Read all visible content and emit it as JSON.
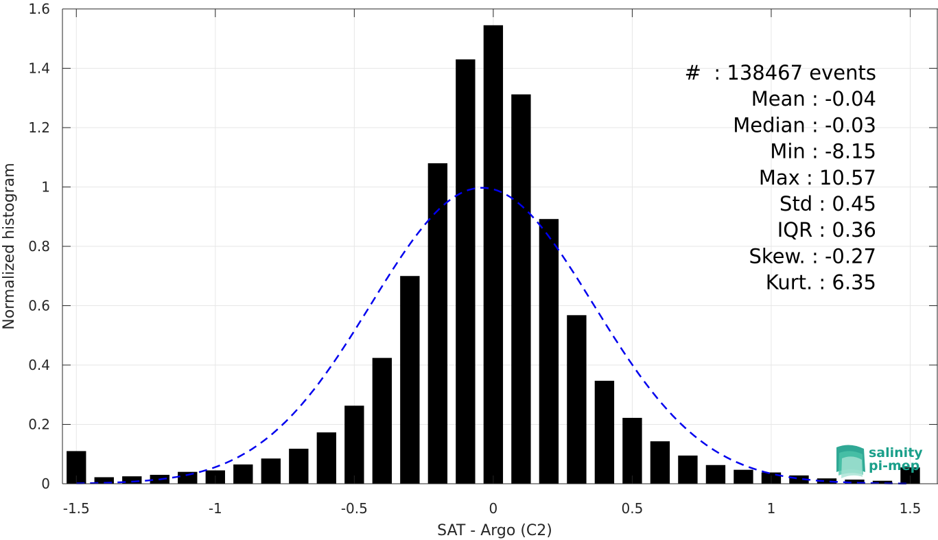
{
  "chart_data": {
    "type": "bar",
    "xlabel": "SAT - Argo (C2)",
    "ylabel": "Normalized histogram",
    "xlim": [
      -1.55,
      1.6
    ],
    "ylim": [
      0,
      1.6
    ],
    "xticks": [
      -1.5,
      -1,
      -0.5,
      0,
      0.5,
      1,
      1.5
    ],
    "xtick_labels": [
      "-1.5",
      "-1",
      "-0.5",
      "0",
      "0.5",
      "1",
      "1.5"
    ],
    "yticks": [
      0,
      0.2,
      0.4,
      0.6,
      0.8,
      1,
      1.2,
      1.4,
      1.6
    ],
    "ytick_labels": [
      "0",
      "0.2",
      "0.4",
      "0.6",
      "0.8",
      "1",
      "1.2",
      "1.4",
      "1.6"
    ],
    "grid": true,
    "bar_color": "#000000",
    "bin_width": 0.1,
    "x": [
      -1.5,
      -1.4,
      -1.3,
      -1.2,
      -1.1,
      -1.0,
      -0.9,
      -0.8,
      -0.7,
      -0.6,
      -0.5,
      -0.4,
      -0.3,
      -0.2,
      -0.1,
      0.0,
      0.1,
      0.2,
      0.3,
      0.4,
      0.5,
      0.6,
      0.7,
      0.8,
      0.9,
      1.0,
      1.1,
      1.2,
      1.3,
      1.4,
      1.5
    ],
    "values": [
      0.11,
      0.022,
      0.025,
      0.03,
      0.04,
      0.045,
      0.065,
      0.085,
      0.118,
      0.173,
      0.263,
      0.424,
      0.7,
      1.08,
      1.43,
      1.545,
      1.312,
      0.892,
      0.568,
      0.347,
      0.222,
      0.143,
      0.095,
      0.063,
      0.047,
      0.038,
      0.028,
      0.018,
      0.014,
      0.01,
      0.055
    ],
    "fit_curve": {
      "type": "gaussian",
      "mean": -0.04,
      "std": 0.4,
      "color": "#0000ee",
      "style": "dashed"
    },
    "annotations": [
      "#  : 138467 events",
      "Mean : -0.04",
      "Median : -0.03",
      "Min : -8.15",
      "Max : 10.57",
      "Std : 0.45",
      "IQR : 0.36",
      "Skew. : -0.27",
      "Kurt. : 6.35"
    ]
  },
  "logo": {
    "line1": "salinity",
    "line2": "pi-mep",
    "color": "#1a9f8a"
  }
}
